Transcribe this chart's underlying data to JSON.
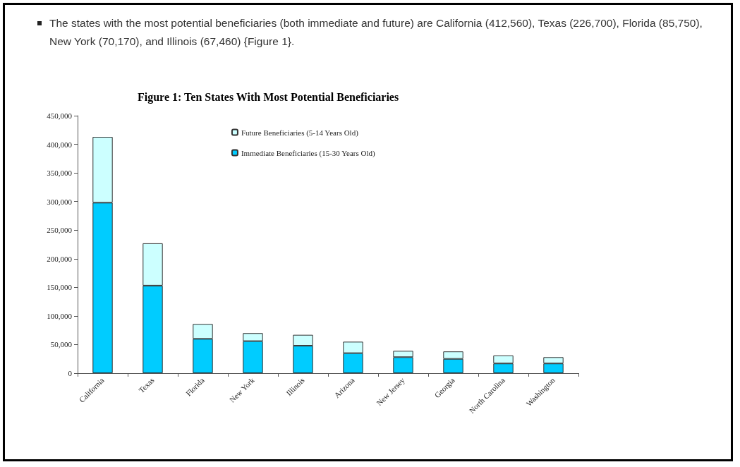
{
  "chart_data": {
    "type": "bar",
    "title": "Figure 1: Ten States With Most Potential Beneficiaries",
    "annotations": [
      "The states with the most potential beneficiaries (both immediate and future) are California (412,560), Texas (226,700), Florida (85,750), New York (70,170), and Illinois (67,460) {Figure 1}."
    ],
    "categories": [
      "California",
      "Texas",
      "Florida",
      "New York",
      "Illinois",
      "Arizona",
      "New Jersey",
      "Georgia",
      "North Carolina",
      "Washington"
    ],
    "stacked": true,
    "series": [
      {
        "name": "Immediate Beneficiaries (15-30 Years Old)",
        "color": "#00ccff",
        "values": [
          298000,
          153000,
          60000,
          56000,
          48000,
          35000,
          28000,
          25000,
          17000,
          17000
        ]
      },
      {
        "name": "Future Beneficiaries (5-14 Years Old)",
        "color": "#ccffff",
        "values": [
          115000,
          74000,
          26000,
          14000,
          19000,
          20000,
          11000,
          13000,
          14000,
          11000
        ]
      }
    ],
    "ylim": [
      0,
      450000
    ],
    "yticks": [
      {
        "value": 0,
        "label": "0"
      },
      {
        "value": 50000,
        "label": "50,000"
      },
      {
        "value": 100000,
        "label": "100,000"
      },
      {
        "value": 150000,
        "label": "150,000"
      },
      {
        "value": 200000,
        "label": "200,000"
      },
      {
        "value": 250000,
        "label": "250,000"
      },
      {
        "value": 300000,
        "label": "300,000"
      },
      {
        "value": 350000,
        "label": "350,000"
      },
      {
        "value": 400000,
        "label": "400,000"
      },
      {
        "value": 450000,
        "label": "450,000"
      }
    ],
    "grid": false,
    "legend": "top"
  }
}
